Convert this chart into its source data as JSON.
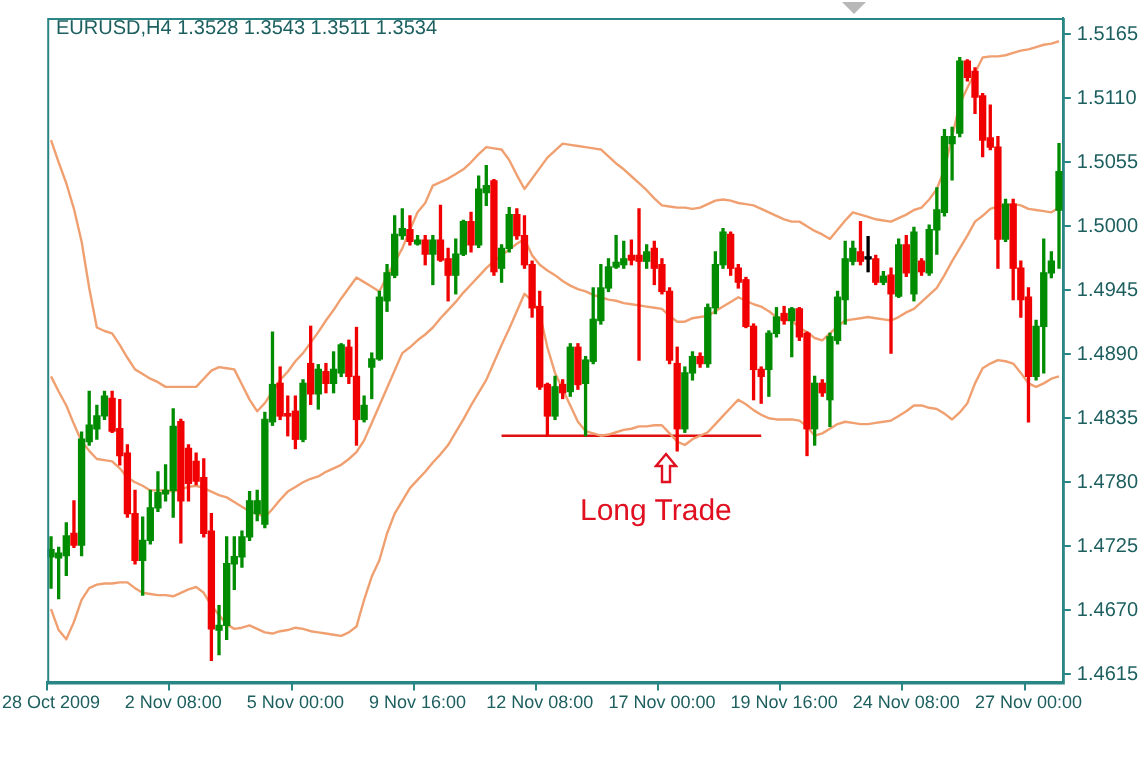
{
  "chart_data": {
    "type": "candlestick",
    "title": "EURUSD,H4 1.3528 1.3543 1.3511 1.3534",
    "annotations": [
      "Long Trade"
    ],
    "categories": [
      "28 Oct 2009",
      null,
      null,
      null,
      null,
      null,
      null,
      null,
      null,
      null,
      null,
      null,
      null,
      null,
      null,
      null,
      "2 Nov 08:00",
      null,
      null,
      null,
      null,
      null,
      null,
      null,
      null,
      null,
      null,
      null,
      null,
      null,
      null,
      null,
      "5 Nov 00:00",
      null,
      null,
      null,
      null,
      null,
      null,
      null,
      null,
      null,
      null,
      null,
      null,
      null,
      null,
      null,
      "9 Nov 16:00",
      null,
      null,
      null,
      null,
      null,
      null,
      null,
      null,
      null,
      null,
      null,
      null,
      null,
      null,
      null,
      "12 Nov 08:00",
      null,
      null,
      null,
      null,
      null,
      null,
      null,
      null,
      null,
      null,
      null,
      null,
      null,
      null,
      null,
      "17 Nov 00:00",
      null,
      null,
      null,
      null,
      null,
      null,
      null,
      null,
      null,
      null,
      null,
      null,
      null,
      null,
      null,
      "19 Nov 16:00",
      null,
      null,
      null,
      null,
      null,
      null,
      null,
      null,
      null,
      null,
      null,
      null,
      null,
      null,
      null,
      "24 Nov 08:00",
      null,
      null,
      null,
      null,
      null,
      null,
      null,
      null,
      null,
      null,
      null,
      null,
      null,
      null,
      null,
      "27 Nov 00:00",
      null,
      null,
      null,
      null
    ],
    "ohlc": [
      [
        1.4716,
        1.4733,
        1.4689,
        1.4722
      ],
      [
        1.4715,
        1.4724,
        1.468,
        1.4719
      ],
      [
        1.4717,
        1.4745,
        1.47,
        1.4734
      ],
      [
        1.4736,
        1.4764,
        1.4724,
        1.4726
      ],
      [
        1.4726,
        1.4823,
        1.4717,
        1.4817
      ],
      [
        1.4815,
        1.4858,
        1.4812,
        1.4829
      ],
      [
        1.4826,
        1.4846,
        1.4817,
        1.4837
      ],
      [
        1.4837,
        1.4858,
        1.4834,
        1.4854
      ],
      [
        1.4852,
        1.4858,
        1.4823,
        1.4824
      ],
      [
        1.4826,
        1.4851,
        1.4795,
        1.4803
      ],
      [
        1.4805,
        1.4812,
        1.475,
        1.4753
      ],
      [
        1.4753,
        1.4773,
        1.471,
        1.4713
      ],
      [
        1.4713,
        1.475,
        1.4683,
        1.473
      ],
      [
        1.473,
        1.4773,
        1.4727,
        1.4758
      ],
      [
        1.4758,
        1.4789,
        1.4755,
        1.4771
      ],
      [
        1.477,
        1.4795,
        1.4764,
        1.4773
      ],
      [
        1.4773,
        1.4843,
        1.475,
        1.4828
      ],
      [
        1.4832,
        1.4834,
        1.4728,
        1.4764
      ],
      [
        1.4809,
        1.4812,
        1.4764,
        1.4779
      ],
      [
        1.4798,
        1.4805,
        1.4778,
        1.4781
      ],
      [
        1.4784,
        1.48,
        1.4733,
        1.4736
      ],
      [
        1.4738,
        1.4753,
        1.4627,
        1.4654
      ],
      [
        1.4653,
        1.4674,
        1.4632,
        1.4657
      ],
      [
        1.4657,
        1.4733,
        1.4645,
        1.471
      ],
      [
        1.471,
        1.4733,
        1.4688,
        1.4716
      ],
      [
        1.4716,
        1.4738,
        1.4707,
        1.4733
      ],
      [
        1.4733,
        1.4772,
        1.473,
        1.4764
      ],
      [
        1.4753,
        1.4773,
        1.4747,
        1.4764
      ],
      [
        1.4744,
        1.484,
        1.4741,
        1.4834
      ],
      [
        1.4832,
        1.4909,
        1.4829,
        1.4864
      ],
      [
        1.4865,
        1.4879,
        1.4834,
        1.4837
      ],
      [
        1.4839,
        1.4854,
        1.482,
        1.4837
      ],
      [
        1.4841,
        1.4854,
        1.4809,
        1.4817
      ],
      [
        1.4817,
        1.4868,
        1.4815,
        1.4865
      ],
      [
        1.4882,
        1.4914,
        1.4847,
        1.4856
      ],
      [
        1.4856,
        1.4881,
        1.4843,
        1.4877
      ],
      [
        1.4875,
        1.4882,
        1.4857,
        1.4865
      ],
      [
        1.4865,
        1.4892,
        1.4857,
        1.4877
      ],
      [
        1.4874,
        1.4899,
        1.4871,
        1.4898
      ],
      [
        1.4896,
        1.4902,
        1.4865,
        1.4871
      ],
      [
        1.4871,
        1.4913,
        1.4812,
        1.4834
      ],
      [
        1.4834,
        1.4854,
        1.4832,
        1.4846
      ],
      [
        1.4879,
        1.4891,
        1.4852,
        1.4886
      ],
      [
        1.4886,
        1.4944,
        1.4885,
        1.4939
      ],
      [
        1.4936,
        1.4967,
        1.4927,
        1.496
      ],
      [
        1.4958,
        1.5009,
        1.4956,
        1.4993
      ],
      [
        1.4992,
        1.5015,
        1.4989,
        1.4998
      ],
      [
        1.4997,
        1.5009,
        1.4984,
        1.4987
      ],
      [
        1.4985,
        1.4992,
        1.4984,
        1.4988
      ],
      [
        1.4988,
        1.4992,
        1.4967,
        1.4976
      ],
      [
        1.4976,
        1.4992,
        1.495,
        1.4988
      ],
      [
        1.4988,
        1.5018,
        1.497,
        1.4971
      ],
      [
        1.4972,
        1.4981,
        1.4936,
        1.4958
      ],
      [
        1.4958,
        1.4989,
        1.4942,
        1.4976
      ],
      [
        1.4976,
        1.5005,
        1.4975,
        1.5004
      ],
      [
        1.5004,
        1.5012,
        1.4978,
        1.4984
      ],
      [
        1.4984,
        1.5043,
        1.4982,
        1.5032
      ],
      [
        1.5029,
        1.5052,
        1.5018,
        1.5035
      ],
      [
        1.5039,
        1.504,
        1.4958,
        1.4961
      ],
      [
        1.4964,
        1.4984,
        1.4952,
        1.4981
      ],
      [
        1.4981,
        1.5016,
        1.4978,
        1.501
      ],
      [
        1.501,
        1.5015,
        1.4989,
        1.4992
      ],
      [
        1.4992,
        1.5009,
        1.4964,
        1.4967
      ],
      [
        1.4967,
        1.497,
        1.4922,
        1.493
      ],
      [
        1.4931,
        1.4944,
        1.486,
        1.4862
      ],
      [
        1.4864,
        1.4865,
        1.482,
        1.4837
      ],
      [
        1.4837,
        1.4871,
        1.4834,
        1.4862
      ],
      [
        1.4864,
        1.4868,
        1.4852,
        1.4857
      ],
      [
        1.4858,
        1.4899,
        1.4854,
        1.4896
      ],
      [
        1.4896,
        1.4899,
        1.486,
        1.4864
      ],
      [
        1.4865,
        1.4888,
        1.482,
        1.4885
      ],
      [
        1.4884,
        1.4947,
        1.4882,
        1.492
      ],
      [
        1.4919,
        1.4967,
        1.4916,
        1.4947
      ],
      [
        1.4947,
        1.4972,
        1.4944,
        1.4965
      ],
      [
        1.4965,
        1.4992,
        1.4964,
        1.4969
      ],
      [
        1.4967,
        1.4987,
        1.4964,
        1.4972
      ],
      [
        1.4975,
        1.4988,
        1.4967,
        1.4971
      ],
      [
        1.4975,
        1.5015,
        1.4885,
        1.497
      ],
      [
        1.497,
        1.4984,
        1.4964,
        1.4978
      ],
      [
        1.4981,
        1.4987,
        1.495,
        1.4964
      ],
      [
        1.4967,
        1.4972,
        1.4942,
        1.4944
      ],
      [
        1.4944,
        1.4947,
        1.4882,
        1.4885
      ],
      [
        1.4882,
        1.4896,
        1.4807,
        1.4826
      ],
      [
        1.4826,
        1.4879,
        1.4823,
        1.4874
      ],
      [
        1.4874,
        1.4892,
        1.4868,
        1.4888
      ],
      [
        1.4888,
        1.4891,
        1.4879,
        1.4882
      ],
      [
        1.4882,
        1.4933,
        1.4879,
        1.493
      ],
      [
        1.493,
        1.4978,
        1.4925,
        1.4967
      ],
      [
        1.4967,
        1.4998,
        1.4964,
        1.4995
      ],
      [
        1.4993,
        1.4995,
        1.4958,
        1.4964
      ],
      [
        1.4964,
        1.4967,
        1.4947,
        1.4952
      ],
      [
        1.4954,
        1.4956,
        1.4913,
        1.4914
      ],
      [
        1.4914,
        1.4916,
        1.4851,
        1.4877
      ],
      [
        1.4877,
        1.4879,
        1.4848,
        1.4871
      ],
      [
        1.4877,
        1.491,
        1.4854,
        1.4908
      ],
      [
        1.4908,
        1.493,
        1.4905,
        1.4922
      ],
      [
        1.4925,
        1.4931,
        1.4916,
        1.4919
      ],
      [
        1.4919,
        1.493,
        1.4888,
        1.4929
      ],
      [
        1.4929,
        1.493,
        1.4902,
        1.4905
      ],
      [
        1.4908,
        1.4909,
        1.4803,
        1.4826
      ],
      [
        1.4826,
        1.4871,
        1.4812,
        1.4865
      ],
      [
        1.4865,
        1.4868,
        1.4854,
        1.4857
      ],
      [
        1.4851,
        1.4908,
        1.4828,
        1.4905
      ],
      [
        1.4902,
        1.4944,
        1.4899,
        1.4939
      ],
      [
        1.4937,
        1.4987,
        1.4916,
        1.4972
      ],
      [
        1.497,
        1.4987,
        1.4967,
        1.4981
      ],
      [
        1.4978,
        1.5004,
        1.4967,
        1.497
      ],
      [
        1.4972,
        1.4991,
        1.4961,
        1.4972
      ],
      [
        1.4972,
        1.4975,
        1.495,
        1.4952
      ],
      [
        1.4952,
        1.4961,
        1.495,
        1.4957
      ],
      [
        1.4958,
        1.4964,
        1.4891,
        1.4942
      ],
      [
        1.494,
        1.4989,
        1.4939,
        1.4984
      ],
      [
        1.4984,
        1.4992,
        1.4957,
        1.496
      ],
      [
        1.4942,
        1.4999,
        1.4936,
        1.4995
      ],
      [
        1.497,
        1.4972,
        1.4958,
        1.4961
      ],
      [
        1.496,
        1.5001,
        1.4958,
        1.4997
      ],
      [
        1.4997,
        1.5033,
        1.4976,
        1.5014
      ],
      [
        1.5012,
        1.5083,
        1.5009,
        1.5077
      ],
      [
        1.5071,
        1.5085,
        1.504,
        1.5077
      ],
      [
        1.508,
        1.5145,
        1.5077,
        1.5142
      ],
      [
        1.5142,
        1.5143,
        1.5125,
        1.5128
      ],
      [
        1.5133,
        1.5136,
        1.5097,
        1.5111
      ],
      [
        1.5112,
        1.5114,
        1.506,
        1.5074
      ],
      [
        1.5076,
        1.5104,
        1.5066,
        1.5068
      ],
      [
        1.5068,
        1.5077,
        1.4964,
        1.4989
      ],
      [
        1.4989,
        1.5023,
        1.4987,
        1.5019
      ],
      [
        1.5019,
        1.5023,
        1.4937,
        1.4964
      ],
      [
        1.4964,
        1.497,
        1.4922,
        1.4937
      ],
      [
        1.4939,
        1.4947,
        1.4832,
        1.4871
      ],
      [
        1.4871,
        1.4919,
        1.4868,
        1.4914
      ],
      [
        1.4914,
        1.4989,
        1.4874,
        1.496
      ],
      [
        1.496,
        1.4978,
        1.4956,
        1.497
      ],
      [
        1.5014,
        1.5071,
        1.4964,
        1.5047
      ]
    ],
    "colors": [
      "#008c00",
      "#008c00",
      "#008c00",
      "#f00000",
      "#008c00",
      "#008c00",
      "#008c00",
      "#008c00",
      "#f00000",
      "#f00000",
      "#f00000",
      "#f00000",
      "#008c00",
      "#008c00",
      "#008c00",
      "#008c00",
      "#008c00",
      "#f00000",
      "#f00000",
      "#f00000",
      "#f00000",
      "#f00000",
      "#008c00",
      "#008c00",
      "#008c00",
      "#008c00",
      "#008c00",
      "#008c00",
      "#008c00",
      "#008c00",
      "#f00000",
      "#f00000",
      "#f00000",
      "#008c00",
      "#f00000",
      "#008c00",
      "#f00000",
      "#008c00",
      "#008c00",
      "#f00000",
      "#f00000",
      "#008c00",
      "#008c00",
      "#008c00",
      "#008c00",
      "#008c00",
      "#008c00",
      "#f00000",
      "#008c00",
      "#f00000",
      "#008c00",
      "#f00000",
      "#f00000",
      "#008c00",
      "#008c00",
      "#f00000",
      "#008c00",
      "#008c00",
      "#f00000",
      "#008c00",
      "#008c00",
      "#f00000",
      "#f00000",
      "#f00000",
      "#f00000",
      "#f00000",
      "#008c00",
      "#f00000",
      "#008c00",
      "#f00000",
      "#008c00",
      "#008c00",
      "#008c00",
      "#008c00",
      "#008c00",
      "#008c00",
      "#f00000",
      "#f00000",
      "#008c00",
      "#f00000",
      "#f00000",
      "#f00000",
      "#f00000",
      "#008c00",
      "#008c00",
      "#f00000",
      "#008c00",
      "#008c00",
      "#008c00",
      "#f00000",
      "#f00000",
      "#f00000",
      "#f00000",
      "#f00000",
      "#008c00",
      "#008c00",
      "#f00000",
      "#008c00",
      "#f00000",
      "#f00000",
      "#008c00",
      "#f00000",
      "#008c00",
      "#008c00",
      "#008c00",
      "#008c00",
      "#f00000",
      "#000000",
      "#f00000",
      "#008c00",
      "#f00000",
      "#008c00",
      "#f00000",
      "#008c00",
      "#f00000",
      "#008c00",
      "#008c00",
      "#008c00",
      "#008c00",
      "#008c00",
      "#f00000",
      "#f00000",
      "#f00000",
      "#f00000",
      "#f00000",
      "#008c00",
      "#f00000",
      "#f00000",
      "#f00000",
      "#008c00",
      "#008c00",
      "#008c00",
      "#008c00"
    ],
    "series": [
      {
        "type": "line",
        "color": "#f0a070",
        "values": [
          1.5074,
          1.5055,
          1.5037,
          1.5015,
          1.4987,
          1.4947,
          1.4913,
          1.491,
          1.4908,
          1.4898,
          1.4887,
          1.4877,
          1.4873,
          1.4869,
          1.4866,
          1.4862,
          1.4862,
          1.4862,
          1.4862,
          1.4862,
          1.4869,
          1.4876,
          1.4879,
          1.4878,
          1.4877,
          1.4864,
          1.4851,
          1.4841,
          1.4848,
          1.4858,
          1.4868,
          1.4875,
          1.4884,
          1.4891,
          1.49,
          1.4909,
          1.4919,
          1.4928,
          1.4938,
          1.4947,
          1.4956,
          1.4952,
          1.4948,
          1.4944,
          1.4957,
          1.4969,
          1.4981,
          1.4997,
          1.5012,
          1.502,
          1.5035,
          1.5038,
          1.5041,
          1.5045,
          1.5049,
          1.5055,
          1.5062,
          1.5068,
          1.5067,
          1.5066,
          1.5057,
          1.5044,
          1.5032,
          1.5041,
          1.505,
          1.5059,
          1.5065,
          1.5071,
          1.507,
          1.5069,
          1.5068,
          1.5067,
          1.5066,
          1.506,
          1.5054,
          1.5049,
          1.5043,
          1.5037,
          1.5031,
          1.5024,
          1.5018,
          1.5017,
          1.5016,
          1.5016,
          1.5015,
          1.5016,
          1.5019,
          1.5022,
          1.5023,
          1.5022,
          1.502,
          1.5019,
          1.5018,
          1.5015,
          1.5012,
          1.5009,
          1.5006,
          1.5004,
          1.5004,
          1.5,
          1.4996,
          1.4993,
          1.4989,
          1.4997,
          1.5005,
          1.5012,
          1.501,
          1.5008,
          1.5006,
          1.5005,
          1.5004,
          1.5007,
          1.501,
          1.5014,
          1.5016,
          1.5023,
          1.5032,
          1.5049,
          1.5077,
          1.5105,
          1.5119,
          1.5132,
          1.5145,
          1.5146,
          1.5146,
          1.5147,
          1.5149,
          1.5151,
          1.5152,
          1.5154,
          1.5156,
          1.5157,
          1.5159
        ]
      },
      {
        "type": "line",
        "color": "#f0a070",
        "values": [
          1.4871,
          1.4858,
          1.4846,
          1.483,
          1.4815,
          1.4807,
          1.48,
          1.4799,
          1.4798,
          1.4792,
          1.4784,
          1.478,
          1.4777,
          1.4773,
          1.4773,
          1.4773,
          1.4772,
          1.4774,
          1.4776,
          1.4777,
          1.4775,
          1.4772,
          1.4769,
          1.4767,
          1.4763,
          1.4759,
          1.4755,
          1.4753,
          1.475,
          1.4757,
          1.4765,
          1.4772,
          1.4776,
          1.478,
          1.4783,
          1.4785,
          1.4789,
          1.4792,
          1.4795,
          1.48,
          1.4806,
          1.4816,
          1.4831,
          1.4846,
          1.4861,
          1.4876,
          1.4891,
          1.4896,
          1.4902,
          1.4907,
          1.4913,
          1.4921,
          1.4928,
          1.4935,
          1.4943,
          1.495,
          1.4957,
          1.4964,
          1.497,
          1.4975,
          1.498,
          1.4985,
          1.4989,
          1.4975,
          1.4967,
          1.4962,
          1.4958,
          1.4953,
          1.4949,
          1.4946,
          1.4944,
          1.4941,
          1.4939,
          1.4937,
          1.4936,
          1.4934,
          1.4933,
          1.4932,
          1.4931,
          1.493,
          1.4929,
          1.4923,
          1.4918,
          1.4918,
          1.4921,
          1.4922,
          1.4923,
          1.4927,
          1.4931,
          1.4935,
          1.4939,
          1.4936,
          1.4933,
          1.4931,
          1.4927,
          1.4922,
          1.492,
          1.4919,
          1.4913,
          1.4909,
          1.4904,
          1.4902,
          1.4908,
          1.4914,
          1.4919,
          1.492,
          1.4921,
          1.4922,
          1.4921,
          1.492,
          1.4919,
          1.4922,
          1.4926,
          1.4929,
          1.4935,
          1.4941,
          1.4947,
          1.4958,
          1.497,
          1.4981,
          1.4992,
          1.5004,
          1.5009,
          1.5015,
          1.5017,
          1.5018,
          1.5019,
          1.5018,
          1.5015,
          1.5014,
          1.5013,
          1.5012,
          1.5016
        ]
      },
      {
        "type": "line",
        "color": "#f0a070",
        "values": [
          1.4671,
          1.4653,
          1.4645,
          1.466,
          1.4679,
          1.4689,
          1.4692,
          1.4693,
          1.4693,
          1.4694,
          1.4694,
          1.4689,
          1.4685,
          1.4684,
          1.4683,
          1.4683,
          1.4682,
          1.4685,
          1.4688,
          1.469,
          1.4685,
          1.4674,
          1.4666,
          1.4658,
          1.4654,
          1.4655,
          1.4657,
          1.4654,
          1.4651,
          1.465,
          1.4652,
          1.4653,
          1.4655,
          1.4654,
          1.4652,
          1.4651,
          1.465,
          1.4649,
          1.4648,
          1.4651,
          1.4656,
          1.4679,
          1.4699,
          1.4713,
          1.4736,
          1.4753,
          1.4764,
          1.4775,
          1.4782,
          1.4789,
          1.4797,
          1.4804,
          1.4812,
          1.4823,
          1.4834,
          1.4846,
          1.4857,
          1.4868,
          1.4883,
          1.4898,
          1.4912,
          1.4927,
          1.4942,
          1.4936,
          1.4925,
          1.4896,
          1.4874,
          1.486,
          1.4846,
          1.4832,
          1.4824,
          1.4822,
          1.482,
          1.4821,
          1.4823,
          1.4825,
          1.4826,
          1.4828,
          1.4828,
          1.4829,
          1.4829,
          1.4822,
          1.4815,
          1.4812,
          1.4817,
          1.482,
          1.4823,
          1.483,
          1.4837,
          1.4844,
          1.4851,
          1.4847,
          1.4842,
          1.4838,
          1.4835,
          1.4834,
          1.4834,
          1.4834,
          1.4833,
          1.4828,
          1.482,
          1.4822,
          1.4826,
          1.483,
          1.4832,
          1.4831,
          1.483,
          1.483,
          1.4831,
          1.4832,
          1.4833,
          1.4837,
          1.4841,
          1.4846,
          1.4846,
          1.4844,
          1.4843,
          1.4839,
          1.4834,
          1.484,
          1.4848,
          1.4865,
          1.4878,
          1.4882,
          1.4885,
          1.4884,
          1.4882,
          1.4874,
          1.4865,
          1.4862,
          1.4865,
          1.4869,
          1.4871
        ]
      },
      {
        "type": "line",
        "color": "#e01010",
        "values": [
          null,
          null,
          null,
          null,
          null,
          null,
          null,
          null,
          null,
          null,
          null,
          null,
          null,
          null,
          null,
          null,
          null,
          null,
          null,
          null,
          null,
          null,
          null,
          null,
          null,
          null,
          null,
          null,
          null,
          null,
          null,
          null,
          null,
          null,
          null,
          null,
          null,
          null,
          null,
          null,
          null,
          null,
          null,
          null,
          null,
          null,
          null,
          null,
          null,
          null,
          null,
          null,
          null,
          null,
          null,
          null,
          null,
          null,
          null,
          1.482,
          1.482,
          1.482,
          1.482,
          1.482,
          1.482,
          1.482,
          1.482,
          1.482,
          1.482,
          1.482,
          1.482,
          1.482,
          1.482,
          1.482,
          1.482,
          1.482,
          1.482,
          1.482,
          1.482,
          1.482,
          1.482,
          1.482,
          1.482,
          1.482,
          1.482,
          1.482,
          1.482,
          1.482,
          1.482,
          1.482,
          1.482,
          1.482,
          1.482,
          1.482,
          null,
          null,
          null,
          null,
          null,
          null,
          null,
          null,
          null,
          null,
          null,
          null,
          null,
          null,
          null,
          null,
          null,
          null,
          null,
          null,
          null,
          null,
          null,
          null,
          null,
          null,
          null,
          null,
          null,
          null,
          null,
          null,
          null,
          null,
          null,
          null,
          null,
          null,
          null
        ]
      }
    ],
    "ylim": [
      1.4608,
      1.5179
    ],
    "yticks": [
      1.5165,
      {
        "value": 1.511,
        "label": "1.5110"
      },
      1.5055,
      {
        "value": 1.5,
        "label": "1.5000"
      },
      1.4945,
      {
        "value": 1.489,
        "label": "1.4890"
      },
      1.4835,
      {
        "value": 1.478,
        "label": "1.4780"
      },
      1.4725,
      {
        "value": 1.467,
        "label": "1.4670"
      },
      1.4615
    ]
  }
}
